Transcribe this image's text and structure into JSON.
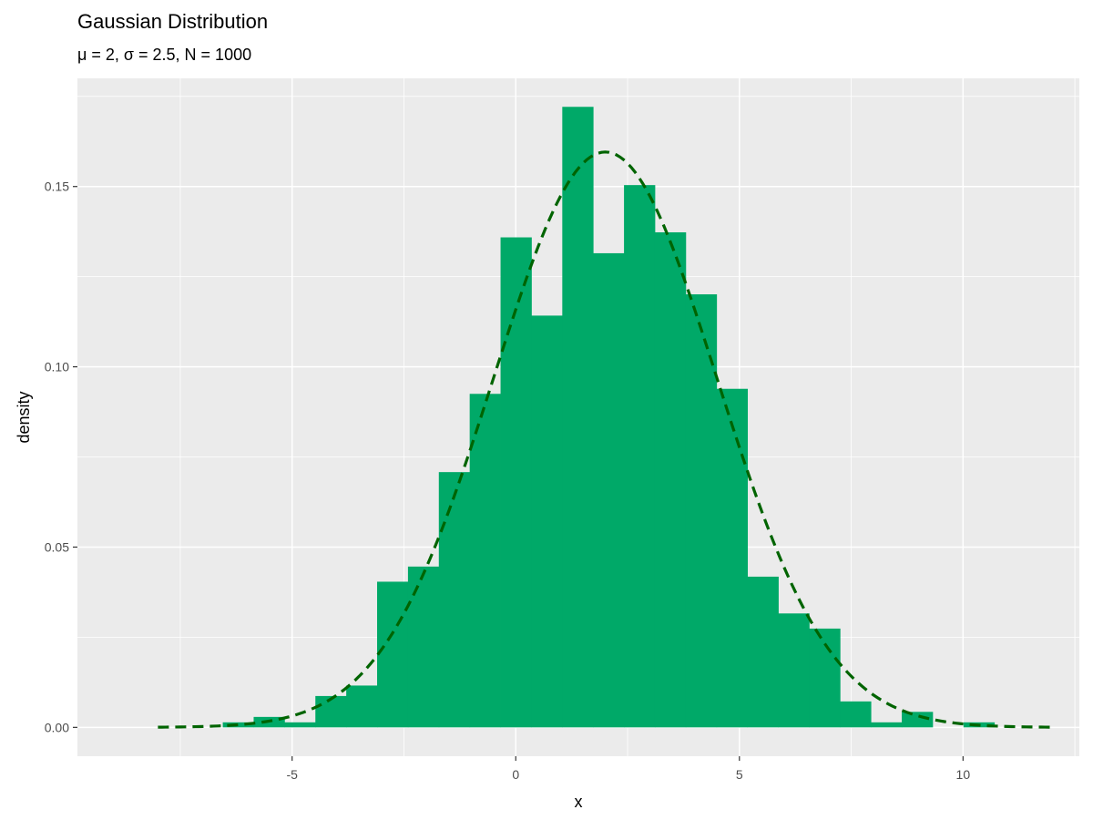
{
  "chart_data": {
    "type": "bar",
    "title": "Gaussian Distribution",
    "subtitle": "μ = 2, σ = 2.5, N = 1000",
    "xlabel": "x",
    "ylabel": "density",
    "xlim": [
      -9.8,
      12.6
    ],
    "ylim": [
      -0.008,
      0.18
    ],
    "x_ticks": [
      -5,
      0,
      5,
      10
    ],
    "x_tick_labels": [
      "-5",
      "0",
      "5",
      "10"
    ],
    "y_ticks": [
      0,
      0.05,
      0.1,
      0.15
    ],
    "y_tick_labels": [
      "0.00",
      "0.05",
      "0.10",
      "0.15"
    ],
    "grid": true,
    "histogram": {
      "bin_width": 0.69,
      "fill": "#00a968",
      "bins": [
        {
          "start": -6.55,
          "density": 0.0014
        },
        {
          "start": -5.86,
          "density": 0.0029
        },
        {
          "start": -5.17,
          "density": 0.0014
        },
        {
          "start": -4.48,
          "density": 0.0087
        },
        {
          "start": -3.79,
          "density": 0.0116
        },
        {
          "start": -3.1,
          "density": 0.0404
        },
        {
          "start": -2.41,
          "density": 0.0446
        },
        {
          "start": -1.72,
          "density": 0.0708
        },
        {
          "start": -1.03,
          "density": 0.0925
        },
        {
          "start": -0.34,
          "density": 0.1359
        },
        {
          "start": 0.35,
          "density": 0.1142
        },
        {
          "start": 1.04,
          "density": 0.1721
        },
        {
          "start": 1.73,
          "density": 0.1315
        },
        {
          "start": 2.42,
          "density": 0.1504
        },
        {
          "start": 3.11,
          "density": 0.1373
        },
        {
          "start": 3.8,
          "density": 0.1201
        },
        {
          "start": 4.49,
          "density": 0.0939
        },
        {
          "start": 5.18,
          "density": 0.0418
        },
        {
          "start": 5.87,
          "density": 0.0316
        },
        {
          "start": 6.56,
          "density": 0.0274
        },
        {
          "start": 7.25,
          "density": 0.0072
        },
        {
          "start": 7.94,
          "density": 0.0014
        },
        {
          "start": 8.63,
          "density": 0.0043
        },
        {
          "start": 9.32,
          "density": 0.0
        },
        {
          "start": 10.01,
          "density": 0.0014
        }
      ]
    },
    "series": [
      {
        "type": "line",
        "style": "dashed",
        "color": "#006400",
        "x_range": [
          -8,
          12
        ],
        "mean": 2,
        "sd": 2.5
      }
    ]
  }
}
